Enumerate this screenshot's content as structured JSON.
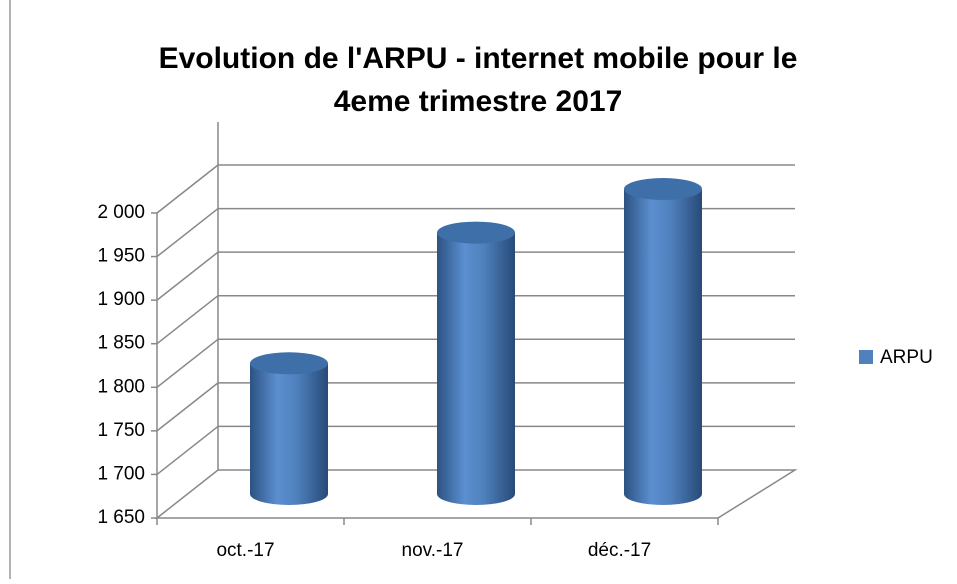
{
  "chart_data": {
    "type": "bar3d",
    "title": "Evolution de l'ARPU - internet mobile pour le 4eme trimestre 2017",
    "categories": [
      "oct.-17",
      "nov.-17",
      "déc.-17"
    ],
    "series": [
      {
        "name": "ARPU",
        "color": "#4f81bd",
        "values": [
          1800,
          1950,
          2000
        ]
      }
    ],
    "ylim": [
      1650,
      2000
    ],
    "yticks": [
      {
        "value": 1650,
        "label": "1 650"
      },
      {
        "value": 1700,
        "label": "1 700"
      },
      {
        "value": 1750,
        "label": "1 750"
      },
      {
        "value": 1800,
        "label": "1 800"
      },
      {
        "value": 1850,
        "label": "1 850"
      },
      {
        "value": 1900,
        "label": "1 900"
      },
      {
        "value": 1950,
        "label": "1 950"
      },
      {
        "value": 2000,
        "label": "2 000"
      }
    ],
    "grid": true,
    "legend": "right"
  }
}
